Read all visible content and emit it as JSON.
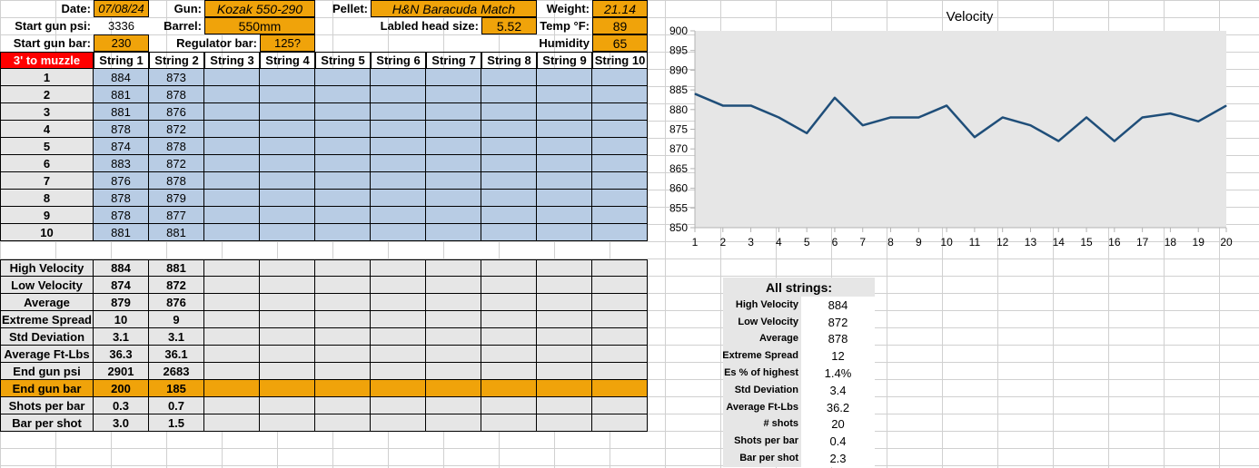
{
  "header": {
    "date_label": "Date:",
    "date_value": "07/08/24",
    "gun_label": "Gun:",
    "gun_value": "Kozak 550-290",
    "pellet_label": "Pellet:",
    "pellet_value": "H&N Baracuda Match",
    "weight_label": "Weight:",
    "weight_value": "21.14",
    "start_psi_label": "Start gun psi:",
    "start_psi_value": "3336",
    "barrel_label": "Barrel:",
    "barrel_value": "550mm",
    "head_size_label": "Labled head size:",
    "head_size_value": "5.52",
    "temp_label": "Temp °F:",
    "temp_value": "89",
    "start_bar_label": "Start gun bar:",
    "start_bar_value": "230",
    "regulator_label": "Regulator bar:",
    "regulator_value": "125?",
    "humidity_label": "Humidity",
    "humidity_value": "65"
  },
  "table": {
    "corner_label": "3' to muzzle",
    "columns": [
      "String 1",
      "String 2",
      "String 3",
      "String 4",
      "String 5",
      "String 6",
      "String 7",
      "String 8",
      "String 9",
      "String 10"
    ],
    "shots": [
      {
        "n": "1",
        "v": [
          "884",
          "873"
        ]
      },
      {
        "n": "2",
        "v": [
          "881",
          "878"
        ]
      },
      {
        "n": "3",
        "v": [
          "881",
          "876"
        ]
      },
      {
        "n": "4",
        "v": [
          "878",
          "872"
        ]
      },
      {
        "n": "5",
        "v": [
          "874",
          "878"
        ]
      },
      {
        "n": "6",
        "v": [
          "883",
          "872"
        ]
      },
      {
        "n": "7",
        "v": [
          "876",
          "878"
        ]
      },
      {
        "n": "8",
        "v": [
          "878",
          "879"
        ]
      },
      {
        "n": "9",
        "v": [
          "878",
          "877"
        ]
      },
      {
        "n": "10",
        "v": [
          "881",
          "881"
        ]
      }
    ],
    "stats": [
      {
        "label": "High Velocity",
        "v": [
          "884",
          "881"
        ]
      },
      {
        "label": "Low Velocity",
        "v": [
          "874",
          "872"
        ]
      },
      {
        "label": "Average",
        "v": [
          "879",
          "876"
        ]
      },
      {
        "label": "Extreme Spread",
        "v": [
          "10",
          "9"
        ]
      },
      {
        "label": "Std Deviation",
        "v": [
          "3.1",
          "3.1"
        ]
      },
      {
        "label": "Average Ft-Lbs",
        "v": [
          "36.3",
          "36.1"
        ]
      },
      {
        "label": "End gun psi",
        "v": [
          "2901",
          "2683"
        ]
      },
      {
        "label": "End gun bar",
        "v": [
          "200",
          "185"
        ]
      },
      {
        "label": "Shots per bar",
        "v": [
          "0.3",
          "0.7"
        ]
      },
      {
        "label": "Bar per shot",
        "v": [
          "3.0",
          "1.5"
        ]
      }
    ]
  },
  "chart_data": {
    "type": "line",
    "title": "Velocity",
    "x": [
      1,
      2,
      3,
      4,
      5,
      6,
      7,
      8,
      9,
      10,
      11,
      12,
      13,
      14,
      15,
      16,
      17,
      18,
      19,
      20
    ],
    "series": [
      {
        "values": [
          884,
          881,
          881,
          878,
          874,
          883,
          876,
          878,
          878,
          881,
          873,
          878,
          876,
          872,
          878,
          872,
          878,
          879,
          877,
          881
        ]
      }
    ],
    "ylim": [
      850,
      900
    ],
    "yticks": [
      900,
      895,
      890,
      885,
      880,
      875,
      870,
      865,
      860,
      855,
      850
    ],
    "grid": false,
    "legend": "none",
    "line_color": "#1f4e79",
    "plot_background": "#e6e6e6"
  },
  "all_strings": {
    "title": "All strings:",
    "rows": [
      {
        "label": "High Velocity",
        "value": "884"
      },
      {
        "label": "Low Velocity",
        "value": "872"
      },
      {
        "label": "Average",
        "value": "878"
      },
      {
        "label": "Extreme Spread",
        "value": "12"
      },
      {
        "label": "Es % of highest",
        "value": "1.4%"
      },
      {
        "label": "Std Deviation",
        "value": "3.4"
      },
      {
        "label": "Average Ft-Lbs",
        "value": "36.2"
      },
      {
        "label": "# shots",
        "value": "20"
      },
      {
        "label": "Shots per bar",
        "value": "0.4"
      },
      {
        "label": "Bar per shot",
        "value": "2.3"
      }
    ]
  },
  "colors": {
    "orange": "#f0a30a",
    "red": "#ff0000",
    "blue": "#b8cce4",
    "gray": "#e6e6e6",
    "series": "#1f4e79"
  }
}
